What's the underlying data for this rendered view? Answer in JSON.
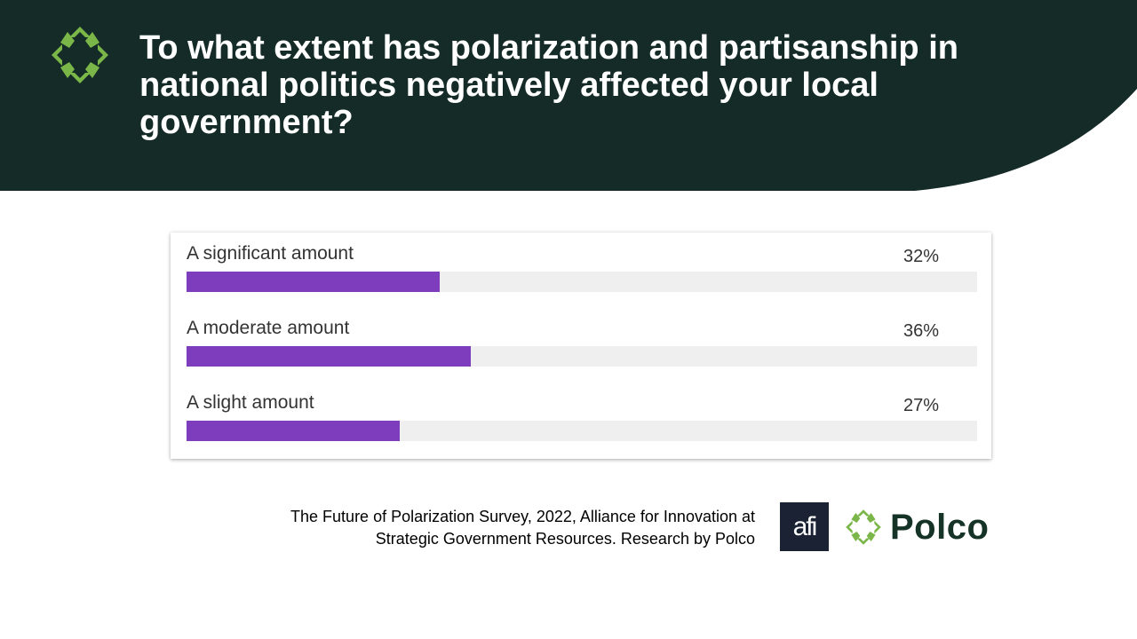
{
  "header": {
    "title": "To what extent has polarization and partisanship in national politics negatively affected your local government?"
  },
  "chart_data": {
    "type": "bar",
    "orientation": "horizontal",
    "categories": [
      "A significant amount",
      "A moderate amount",
      "A slight amount"
    ],
    "values": [
      32,
      36,
      27
    ],
    "value_labels": [
      "32%",
      "36%",
      "27%"
    ],
    "xlim": [
      0,
      100
    ]
  },
  "footer": {
    "source_line1": "The Future of Polarization Survey, 2022, Alliance for Innovation at",
    "source_line2": "Strategic Government Resources. Research by Polco",
    "afi_logo_text": "afi",
    "polco_logo_text": "Polco"
  },
  "colors": {
    "header_bg": "#152b28",
    "bar_fill": "#7d3dbd",
    "bar_track": "#efefef",
    "brand_green": "#7ab648"
  }
}
